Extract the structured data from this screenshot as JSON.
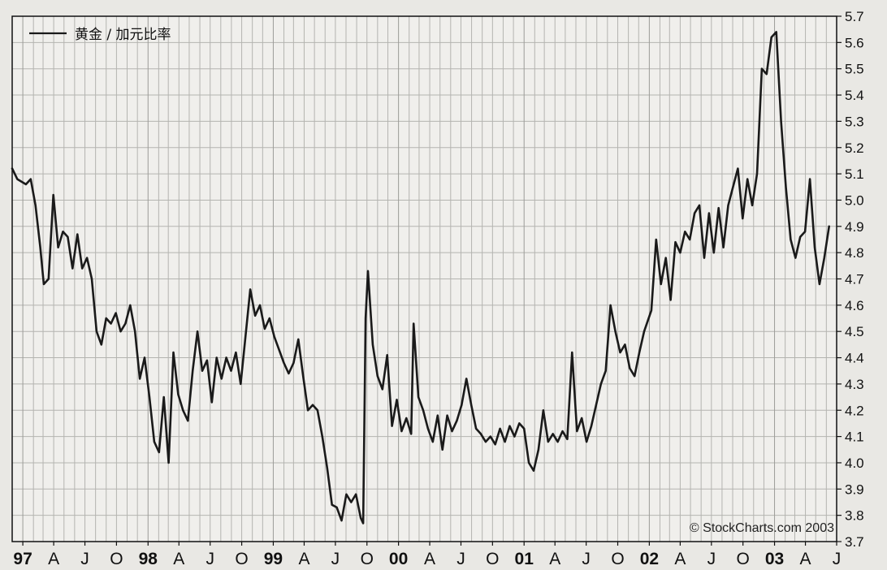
{
  "chart_data": {
    "type": "line",
    "legend": {
      "label": "黄金 / 加元比率",
      "position": "top-left"
    },
    "copyright": "© StockCharts.com 2003",
    "grid": true,
    "y_axis": {
      "side": "right",
      "ylim": [
        3.7,
        5.7
      ],
      "ticks": [
        "3.7",
        "3.8",
        "3.9",
        "4.0",
        "4.1",
        "4.2",
        "4.3",
        "4.4",
        "4.5",
        "4.6",
        "4.7",
        "4.8",
        "4.9",
        "5.0",
        "5.1",
        "5.2",
        "5.3",
        "5.4",
        "5.5",
        "5.6",
        "5.7"
      ]
    },
    "x_axis": {
      "ticks": [
        {
          "label": "97",
          "bold": true,
          "at": "1997-01"
        },
        {
          "label": "A",
          "bold": false,
          "at": "1997-04"
        },
        {
          "label": "J",
          "bold": false,
          "at": "1997-07"
        },
        {
          "label": "O",
          "bold": false,
          "at": "1997-10"
        },
        {
          "label": "98",
          "bold": true,
          "at": "1998-01"
        },
        {
          "label": "A",
          "bold": false,
          "at": "1998-04"
        },
        {
          "label": "J",
          "bold": false,
          "at": "1998-07"
        },
        {
          "label": "O",
          "bold": false,
          "at": "1998-10"
        },
        {
          "label": "99",
          "bold": true,
          "at": "1999-01"
        },
        {
          "label": "A",
          "bold": false,
          "at": "1999-04"
        },
        {
          "label": "J",
          "bold": false,
          "at": "1999-07"
        },
        {
          "label": "O",
          "bold": false,
          "at": "1999-10"
        },
        {
          "label": "00",
          "bold": true,
          "at": "2000-01"
        },
        {
          "label": "A",
          "bold": false,
          "at": "2000-04"
        },
        {
          "label": "J",
          "bold": false,
          "at": "2000-07"
        },
        {
          "label": "O",
          "bold": false,
          "at": "2000-10"
        },
        {
          "label": "01",
          "bold": true,
          "at": "2001-01"
        },
        {
          "label": "A",
          "bold": false,
          "at": "2001-04"
        },
        {
          "label": "J",
          "bold": false,
          "at": "2001-07"
        },
        {
          "label": "O",
          "bold": false,
          "at": "2001-10"
        },
        {
          "label": "02",
          "bold": true,
          "at": "2002-01"
        },
        {
          "label": "A",
          "bold": false,
          "at": "2002-04"
        },
        {
          "label": "J",
          "bold": false,
          "at": "2002-07"
        },
        {
          "label": "O",
          "bold": false,
          "at": "2002-10"
        },
        {
          "label": "03",
          "bold": true,
          "at": "2003-01"
        },
        {
          "label": "A",
          "bold": false,
          "at": "2003-04"
        },
        {
          "label": "J",
          "bold": false,
          "at": "2003-07"
        }
      ]
    },
    "series": [
      {
        "name": "黄金 / 加元比率",
        "color": "#1a1a1a",
        "points": [
          [
            "1996-12-01",
            5.12
          ],
          [
            "1996-12-16",
            5.08
          ],
          [
            "1997-01-10",
            5.06
          ],
          [
            "1997-01-24",
            5.08
          ],
          [
            "1997-02-07",
            4.98
          ],
          [
            "1997-02-21",
            4.82
          ],
          [
            "1997-03-03",
            4.68
          ],
          [
            "1997-03-17",
            4.7
          ],
          [
            "1997-03-31",
            5.02
          ],
          [
            "1997-04-14",
            4.82
          ],
          [
            "1997-04-28",
            4.88
          ],
          [
            "1997-05-12",
            4.86
          ],
          [
            "1997-05-26",
            4.74
          ],
          [
            "1997-06-09",
            4.87
          ],
          [
            "1997-06-23",
            4.74
          ],
          [
            "1997-07-07",
            4.78
          ],
          [
            "1997-07-21",
            4.7
          ],
          [
            "1997-08-04",
            4.5
          ],
          [
            "1997-08-18",
            4.45
          ],
          [
            "1997-09-01",
            4.55
          ],
          [
            "1997-09-15",
            4.53
          ],
          [
            "1997-09-29",
            4.57
          ],
          [
            "1997-10-13",
            4.5
          ],
          [
            "1997-10-27",
            4.53
          ],
          [
            "1997-11-10",
            4.6
          ],
          [
            "1997-11-24",
            4.5
          ],
          [
            "1997-12-08",
            4.32
          ],
          [
            "1997-12-22",
            4.4
          ],
          [
            "1998-01-05",
            4.25
          ],
          [
            "1998-01-19",
            4.08
          ],
          [
            "1998-02-02",
            4.04
          ],
          [
            "1998-02-16",
            4.25
          ],
          [
            "1998-03-02",
            4.0
          ],
          [
            "1998-03-16",
            4.42
          ],
          [
            "1998-03-30",
            4.26
          ],
          [
            "1998-04-13",
            4.2
          ],
          [
            "1998-04-27",
            4.16
          ],
          [
            "1998-05-11",
            4.35
          ],
          [
            "1998-05-25",
            4.5
          ],
          [
            "1998-06-08",
            4.35
          ],
          [
            "1998-06-22",
            4.39
          ],
          [
            "1998-07-06",
            4.23
          ],
          [
            "1998-07-20",
            4.4
          ],
          [
            "1998-08-03",
            4.32
          ],
          [
            "1998-08-17",
            4.4
          ],
          [
            "1998-08-31",
            4.35
          ],
          [
            "1998-09-14",
            4.42
          ],
          [
            "1998-09-28",
            4.3
          ],
          [
            "1998-10-12",
            4.48
          ],
          [
            "1998-10-26",
            4.66
          ],
          [
            "1998-11-09",
            4.56
          ],
          [
            "1998-11-23",
            4.6
          ],
          [
            "1998-12-07",
            4.51
          ],
          [
            "1998-12-21",
            4.55
          ],
          [
            "1999-01-04",
            4.48
          ],
          [
            "1999-01-18",
            4.43
          ],
          [
            "1999-02-01",
            4.38
          ],
          [
            "1999-02-15",
            4.34
          ],
          [
            "1999-03-01",
            4.38
          ],
          [
            "1999-03-15",
            4.47
          ],
          [
            "1999-03-29",
            4.33
          ],
          [
            "1999-04-12",
            4.2
          ],
          [
            "1999-04-26",
            4.22
          ],
          [
            "1999-05-10",
            4.2
          ],
          [
            "1999-05-24",
            4.1
          ],
          [
            "1999-06-07",
            3.98
          ],
          [
            "1999-06-21",
            3.84
          ],
          [
            "1999-07-05",
            3.83
          ],
          [
            "1999-07-19",
            3.78
          ],
          [
            "1999-08-02",
            3.88
          ],
          [
            "1999-08-16",
            3.85
          ],
          [
            "1999-08-30",
            3.88
          ],
          [
            "1999-09-13",
            3.79
          ],
          [
            "1999-09-20",
            3.77
          ],
          [
            "1999-09-27",
            4.55
          ],
          [
            "1999-10-04",
            4.73
          ],
          [
            "1999-10-18",
            4.45
          ],
          [
            "1999-11-01",
            4.33
          ],
          [
            "1999-11-15",
            4.28
          ],
          [
            "1999-11-29",
            4.41
          ],
          [
            "1999-12-13",
            4.14
          ],
          [
            "1999-12-27",
            4.24
          ],
          [
            "2000-01-10",
            4.12
          ],
          [
            "2000-01-24",
            4.17
          ],
          [
            "2000-02-07",
            4.11
          ],
          [
            "2000-02-14",
            4.53
          ],
          [
            "2000-02-28",
            4.25
          ],
          [
            "2000-03-13",
            4.2
          ],
          [
            "2000-03-27",
            4.13
          ],
          [
            "2000-04-10",
            4.08
          ],
          [
            "2000-04-24",
            4.18
          ],
          [
            "2000-05-08",
            4.05
          ],
          [
            "2000-05-22",
            4.18
          ],
          [
            "2000-06-05",
            4.12
          ],
          [
            "2000-06-19",
            4.16
          ],
          [
            "2000-07-03",
            4.22
          ],
          [
            "2000-07-17",
            4.32
          ],
          [
            "2000-07-31",
            4.22
          ],
          [
            "2000-08-14",
            4.13
          ],
          [
            "2000-08-28",
            4.11
          ],
          [
            "2000-09-11",
            4.08
          ],
          [
            "2000-09-25",
            4.1
          ],
          [
            "2000-10-09",
            4.07
          ],
          [
            "2000-10-23",
            4.13
          ],
          [
            "2000-11-06",
            4.08
          ],
          [
            "2000-11-20",
            4.14
          ],
          [
            "2000-12-04",
            4.1
          ],
          [
            "2000-12-18",
            4.15
          ],
          [
            "2001-01-01",
            4.13
          ],
          [
            "2001-01-15",
            4.0
          ],
          [
            "2001-01-29",
            3.97
          ],
          [
            "2001-02-12",
            4.05
          ],
          [
            "2001-02-26",
            4.2
          ],
          [
            "2001-03-12",
            4.08
          ],
          [
            "2001-03-26",
            4.11
          ],
          [
            "2001-04-09",
            4.08
          ],
          [
            "2001-04-23",
            4.12
          ],
          [
            "2001-05-07",
            4.09
          ],
          [
            "2001-05-21",
            4.42
          ],
          [
            "2001-06-04",
            4.12
          ],
          [
            "2001-06-18",
            4.17
          ],
          [
            "2001-07-02",
            4.08
          ],
          [
            "2001-07-16",
            4.14
          ],
          [
            "2001-07-30",
            4.22
          ],
          [
            "2001-08-13",
            4.3
          ],
          [
            "2001-08-27",
            4.35
          ],
          [
            "2001-09-10",
            4.6
          ],
          [
            "2001-09-24",
            4.5
          ],
          [
            "2001-10-08",
            4.42
          ],
          [
            "2001-10-22",
            4.45
          ],
          [
            "2001-11-05",
            4.36
          ],
          [
            "2001-11-19",
            4.33
          ],
          [
            "2001-12-03",
            4.42
          ],
          [
            "2001-12-17",
            4.5
          ],
          [
            "2002-01-07",
            4.58
          ],
          [
            "2002-01-21",
            4.85
          ],
          [
            "2002-02-04",
            4.68
          ],
          [
            "2002-02-18",
            4.78
          ],
          [
            "2002-03-04",
            4.62
          ],
          [
            "2002-03-18",
            4.84
          ],
          [
            "2002-04-01",
            4.8
          ],
          [
            "2002-04-15",
            4.88
          ],
          [
            "2002-04-29",
            4.85
          ],
          [
            "2002-05-13",
            4.95
          ],
          [
            "2002-05-27",
            4.98
          ],
          [
            "2002-06-10",
            4.78
          ],
          [
            "2002-06-24",
            4.95
          ],
          [
            "2002-07-08",
            4.8
          ],
          [
            "2002-07-22",
            4.97
          ],
          [
            "2002-08-05",
            4.82
          ],
          [
            "2002-08-19",
            4.98
          ],
          [
            "2002-09-02",
            5.05
          ],
          [
            "2002-09-16",
            5.12
          ],
          [
            "2002-09-30",
            4.93
          ],
          [
            "2002-10-14",
            5.08
          ],
          [
            "2002-10-28",
            4.98
          ],
          [
            "2002-11-11",
            5.1
          ],
          [
            "2002-11-25",
            5.5
          ],
          [
            "2002-12-09",
            5.48
          ],
          [
            "2002-12-23",
            5.62
          ],
          [
            "2003-01-06",
            5.64
          ],
          [
            "2003-01-20",
            5.3
          ],
          [
            "2003-02-03",
            5.05
          ],
          [
            "2003-02-17",
            4.85
          ],
          [
            "2003-03-03",
            4.78
          ],
          [
            "2003-03-17",
            4.86
          ],
          [
            "2003-03-31",
            4.88
          ],
          [
            "2003-04-07",
            4.98
          ],
          [
            "2003-04-14",
            5.08
          ],
          [
            "2003-04-28",
            4.82
          ],
          [
            "2003-05-12",
            4.68
          ],
          [
            "2003-05-26",
            4.78
          ],
          [
            "2003-06-09",
            4.9
          ]
        ]
      }
    ]
  }
}
